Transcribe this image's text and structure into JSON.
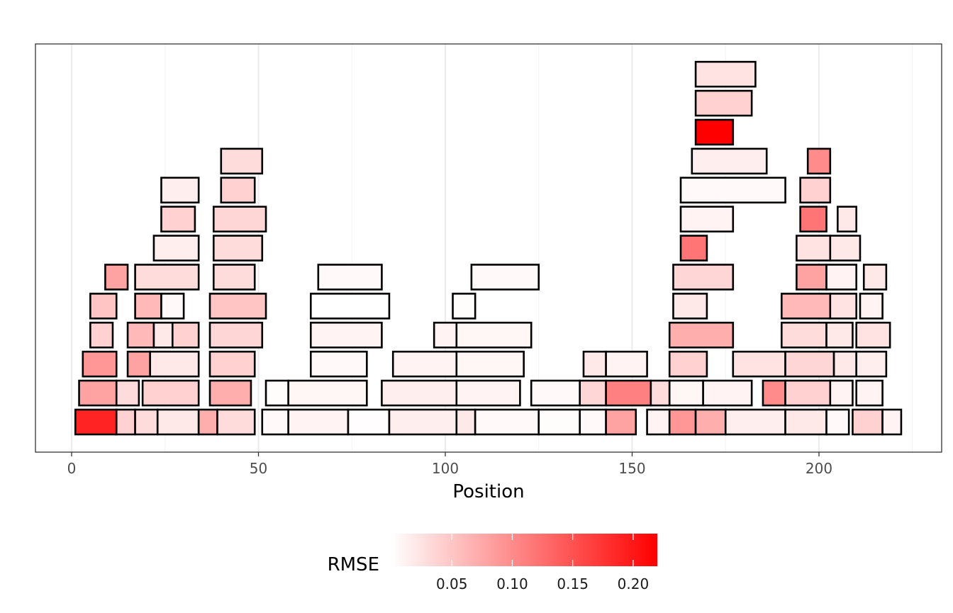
{
  "chart_data": {
    "type": "uptake-plot",
    "title": "",
    "xlabel": "Position",
    "ylabel": "",
    "xlim": [
      -10,
      233
    ],
    "xticks": [
      0,
      50,
      100,
      150,
      200
    ],
    "x_minor_ticks": [
      25,
      75,
      125,
      175,
      225
    ],
    "grid": true,
    "legend": {
      "title": "RMSE",
      "placement": "bottom",
      "min": 0.0,
      "max": 0.22,
      "ticks": [
        "0.05",
        "0.10",
        "0.15",
        "0.20"
      ],
      "low_color": "#ffffff",
      "high_color": "#ff0000"
    },
    "peptides": [
      {
        "start": 1,
        "end": 12,
        "level": 0,
        "rmse": 0.19
      },
      {
        "start": 12,
        "end": 17,
        "level": 0,
        "rmse": 0.04
      },
      {
        "start": 17,
        "end": 23,
        "level": 0,
        "rmse": 0.03
      },
      {
        "start": 23,
        "end": 34,
        "level": 0,
        "rmse": 0.02
      },
      {
        "start": 34,
        "end": 39,
        "level": 0,
        "rmse": 0.07
      },
      {
        "start": 39,
        "end": 49,
        "level": 0,
        "rmse": 0.03
      },
      {
        "start": 51,
        "end": 58,
        "level": 0,
        "rmse": 0.005
      },
      {
        "start": 58,
        "end": 74,
        "level": 0,
        "rmse": 0.01
      },
      {
        "start": 74,
        "end": 85,
        "level": 0,
        "rmse": 0.002
      },
      {
        "start": 85,
        "end": 103,
        "level": 0,
        "rmse": 0.015
      },
      {
        "start": 103,
        "end": 108,
        "level": 0,
        "rmse": 0.02
      },
      {
        "start": 108,
        "end": 125,
        "level": 0,
        "rmse": 0.005
      },
      {
        "start": 125,
        "end": 136,
        "level": 0,
        "rmse": 0.003
      },
      {
        "start": 136,
        "end": 143,
        "level": 0,
        "rmse": 0.005
      },
      {
        "start": 143,
        "end": 151,
        "level": 0,
        "rmse": 0.08
      },
      {
        "start": 154,
        "end": 160,
        "level": 0,
        "rmse": 0.01
      },
      {
        "start": 160,
        "end": 167,
        "level": 0,
        "rmse": 0.09
      },
      {
        "start": 167,
        "end": 175,
        "level": 0,
        "rmse": 0.07
      },
      {
        "start": 175,
        "end": 191,
        "level": 0,
        "rmse": 0.015
      },
      {
        "start": 191,
        "end": 202,
        "level": 0,
        "rmse": 0.02
      },
      {
        "start": 202,
        "end": 208,
        "level": 0,
        "rmse": 0.005
      },
      {
        "start": 209,
        "end": 217,
        "level": 0,
        "rmse": 0.04
      },
      {
        "start": 217,
        "end": 222,
        "level": 0,
        "rmse": 0.01
      },
      {
        "start": 2,
        "end": 12,
        "level": 1,
        "rmse": 0.08
      },
      {
        "start": 12,
        "end": 18,
        "level": 1,
        "rmse": 0.03
      },
      {
        "start": 19,
        "end": 34,
        "level": 1,
        "rmse": 0.04
      },
      {
        "start": 37,
        "end": 48,
        "level": 1,
        "rmse": 0.07
      },
      {
        "start": 52,
        "end": 58,
        "level": 1,
        "rmse": 0.003
      },
      {
        "start": 58,
        "end": 79,
        "level": 1,
        "rmse": 0.008
      },
      {
        "start": 83,
        "end": 103,
        "level": 1,
        "rmse": 0.015
      },
      {
        "start": 103,
        "end": 120,
        "level": 1,
        "rmse": 0.01
      },
      {
        "start": 123,
        "end": 136,
        "level": 1,
        "rmse": 0.005
      },
      {
        "start": 136,
        "end": 143,
        "level": 1,
        "rmse": 0.035
      },
      {
        "start": 143,
        "end": 155,
        "level": 1,
        "rmse": 0.11
      },
      {
        "start": 155,
        "end": 160,
        "level": 1,
        "rmse": 0.03
      },
      {
        "start": 160,
        "end": 169,
        "level": 1,
        "rmse": 0.008
      },
      {
        "start": 169,
        "end": 182,
        "level": 1,
        "rmse": 0.01
      },
      {
        "start": 185,
        "end": 191,
        "level": 1,
        "rmse": 0.1
      },
      {
        "start": 191,
        "end": 203,
        "level": 1,
        "rmse": 0.04
      },
      {
        "start": 203,
        "end": 209,
        "level": 1,
        "rmse": 0.01
      },
      {
        "start": 210,
        "end": 217,
        "level": 1,
        "rmse": 0.01
      },
      {
        "start": 3,
        "end": 12,
        "level": 2,
        "rmse": 0.09
      },
      {
        "start": 15,
        "end": 21,
        "level": 2,
        "rmse": 0.08
      },
      {
        "start": 21,
        "end": 34,
        "level": 2,
        "rmse": 0.02
      },
      {
        "start": 37,
        "end": 49,
        "level": 2,
        "rmse": 0.04
      },
      {
        "start": 64,
        "end": 79,
        "level": 2,
        "rmse": 0.005
      },
      {
        "start": 86,
        "end": 103,
        "level": 2,
        "rmse": 0.01
      },
      {
        "start": 103,
        "end": 121,
        "level": 2,
        "rmse": 0.008
      },
      {
        "start": 137,
        "end": 143,
        "level": 2,
        "rmse": 0.02
      },
      {
        "start": 143,
        "end": 154,
        "level": 2,
        "rmse": 0.01
      },
      {
        "start": 160,
        "end": 170,
        "level": 2,
        "rmse": 0.04
      },
      {
        "start": 177,
        "end": 191,
        "level": 2,
        "rmse": 0.025
      },
      {
        "start": 191,
        "end": 204,
        "level": 2,
        "rmse": 0.035
      },
      {
        "start": 204,
        "end": 210,
        "level": 2,
        "rmse": 0.02
      },
      {
        "start": 210,
        "end": 218,
        "level": 2,
        "rmse": 0.015
      },
      {
        "start": 5,
        "end": 11,
        "level": 3,
        "rmse": 0.04
      },
      {
        "start": 15,
        "end": 22,
        "level": 3,
        "rmse": 0.06
      },
      {
        "start": 22,
        "end": 27,
        "level": 3,
        "rmse": 0.02
      },
      {
        "start": 27,
        "end": 34,
        "level": 3,
        "rmse": 0.04
      },
      {
        "start": 37,
        "end": 51,
        "level": 3,
        "rmse": 0.035
      },
      {
        "start": 64,
        "end": 83,
        "level": 3,
        "rmse": 0.01
      },
      {
        "start": 97,
        "end": 103,
        "level": 3,
        "rmse": 0.01
      },
      {
        "start": 103,
        "end": 123,
        "level": 3,
        "rmse": 0.008
      },
      {
        "start": 160,
        "end": 177,
        "level": 3,
        "rmse": 0.07
      },
      {
        "start": 190,
        "end": 202,
        "level": 3,
        "rmse": 0.03
      },
      {
        "start": 202,
        "end": 209,
        "level": 3,
        "rmse": 0.02
      },
      {
        "start": 210,
        "end": 219,
        "level": 3,
        "rmse": 0.025
      },
      {
        "start": 5,
        "end": 12,
        "level": 4,
        "rmse": 0.05
      },
      {
        "start": 17,
        "end": 24,
        "level": 4,
        "rmse": 0.06
      },
      {
        "start": 24,
        "end": 30,
        "level": 4,
        "rmse": 0.005
      },
      {
        "start": 37,
        "end": 52,
        "level": 4,
        "rmse": 0.05
      },
      {
        "start": 64,
        "end": 85,
        "level": 4,
        "rmse": 0.0
      },
      {
        "start": 102,
        "end": 108,
        "level": 4,
        "rmse": 0.003
      },
      {
        "start": 161,
        "end": 170,
        "level": 4,
        "rmse": 0.02
      },
      {
        "start": 190,
        "end": 203,
        "level": 4,
        "rmse": 0.06
      },
      {
        "start": 203,
        "end": 210,
        "level": 4,
        "rmse": 0.025
      },
      {
        "start": 211,
        "end": 217,
        "level": 4,
        "rmse": 0.01
      },
      {
        "start": 9,
        "end": 15,
        "level": 5,
        "rmse": 0.08
      },
      {
        "start": 17,
        "end": 34,
        "level": 5,
        "rmse": 0.03
      },
      {
        "start": 38,
        "end": 49,
        "level": 5,
        "rmse": 0.03
      },
      {
        "start": 66,
        "end": 83,
        "level": 5,
        "rmse": 0.005
      },
      {
        "start": 107,
        "end": 125,
        "level": 5,
        "rmse": 0.005
      },
      {
        "start": 161,
        "end": 177,
        "level": 5,
        "rmse": 0.035
      },
      {
        "start": 194,
        "end": 202,
        "level": 5,
        "rmse": 0.08
      },
      {
        "start": 202,
        "end": 210,
        "level": 5,
        "rmse": 0.01
      },
      {
        "start": 212,
        "end": 218,
        "level": 5,
        "rmse": 0.02
      },
      {
        "start": 22,
        "end": 34,
        "level": 6,
        "rmse": 0.015
      },
      {
        "start": 38,
        "end": 51,
        "level": 6,
        "rmse": 0.03
      },
      {
        "start": 163,
        "end": 170,
        "level": 6,
        "rmse": 0.12
      },
      {
        "start": 194,
        "end": 203,
        "level": 6,
        "rmse": 0.025
      },
      {
        "start": 203,
        "end": 211,
        "level": 6,
        "rmse": 0.02
      },
      {
        "start": 24,
        "end": 33,
        "level": 7,
        "rmse": 0.04
      },
      {
        "start": 38,
        "end": 52,
        "level": 7,
        "rmse": 0.035
      },
      {
        "start": 163,
        "end": 177,
        "level": 7,
        "rmse": 0.01
      },
      {
        "start": 195,
        "end": 202,
        "level": 7,
        "rmse": 0.12
      },
      {
        "start": 205,
        "end": 210,
        "level": 7,
        "rmse": 0.02
      },
      {
        "start": 24,
        "end": 34,
        "level": 8,
        "rmse": 0.015
      },
      {
        "start": 40,
        "end": 49,
        "level": 8,
        "rmse": 0.04
      },
      {
        "start": 163,
        "end": 191,
        "level": 8,
        "rmse": 0.005
      },
      {
        "start": 195,
        "end": 203,
        "level": 8,
        "rmse": 0.04
      },
      {
        "start": 40,
        "end": 51,
        "level": 9,
        "rmse": 0.03
      },
      {
        "start": 166,
        "end": 186,
        "level": 9,
        "rmse": 0.015
      },
      {
        "start": 197,
        "end": 203,
        "level": 9,
        "rmse": 0.1
      },
      {
        "start": 167,
        "end": 177,
        "level": 10,
        "rmse": 0.22
      },
      {
        "start": 167,
        "end": 182,
        "level": 11,
        "rmse": 0.04
      },
      {
        "start": 167,
        "end": 183,
        "level": 12,
        "rmse": 0.025
      }
    ]
  }
}
